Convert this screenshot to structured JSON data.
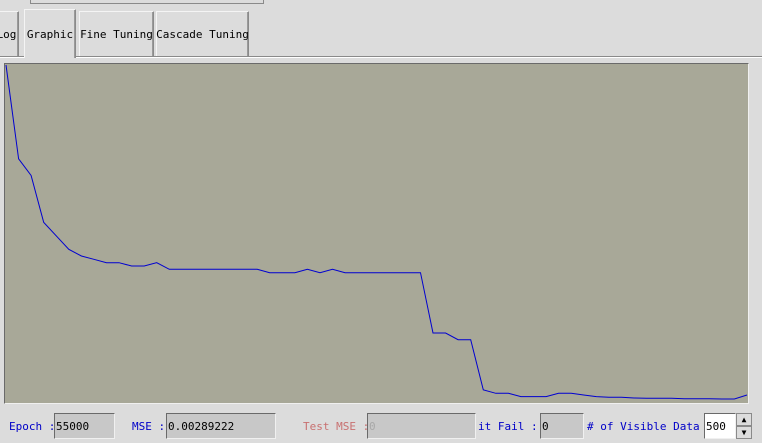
{
  "tabs": [
    {
      "id": "log",
      "label": "Log"
    },
    {
      "id": "graphic",
      "label": "Graphic",
      "active": true
    },
    {
      "id": "fine",
      "label": "Fine Tuning"
    },
    {
      "id": "cascade",
      "label": "Cascade Tuning"
    }
  ],
  "status": {
    "epoch_label": "Epoch :",
    "epoch_value": "55000",
    "mse_label": "MSE :",
    "mse_value": "0.00289222",
    "test_mse_label": "Test MSE :",
    "test_mse_value": "0",
    "bit_fail_label": "it Fail  :",
    "bit_fail_value": "0",
    "visible_label": "# of Visible Data :",
    "visible_value": "500"
  },
  "colors": {
    "plot_background": "#a8a898",
    "line": "#0000d0",
    "label_blue": "#0000c8",
    "label_disabled": "#c87070"
  },
  "icons": {
    "spin_up": "arrow-up",
    "spin_down": "arrow-down"
  },
  "chart_data": {
    "type": "line",
    "title": "",
    "xlabel": "",
    "ylabel": "",
    "xlim": [
      0,
      59
    ],
    "ylim": [
      0,
      1
    ],
    "grid": false,
    "series": [
      {
        "values": [
          1.0,
          0.72,
          0.67,
          0.53,
          0.49,
          0.45,
          0.43,
          0.42,
          0.41,
          0.41,
          0.4,
          0.4,
          0.41,
          0.39,
          0.39,
          0.39,
          0.39,
          0.39,
          0.39,
          0.39,
          0.39,
          0.38,
          0.38,
          0.38,
          0.39,
          0.38,
          0.39,
          0.38,
          0.38,
          0.38,
          0.38,
          0.38,
          0.38,
          0.38,
          0.2,
          0.2,
          0.18,
          0.18,
          0.03,
          0.02,
          0.02,
          0.01,
          0.01,
          0.01,
          0.02,
          0.02,
          0.015,
          0.01,
          0.008,
          0.008,
          0.006,
          0.005,
          0.005,
          0.005,
          0.004,
          0.004,
          0.004,
          0.003,
          0.003,
          0.015
        ]
      }
    ]
  }
}
